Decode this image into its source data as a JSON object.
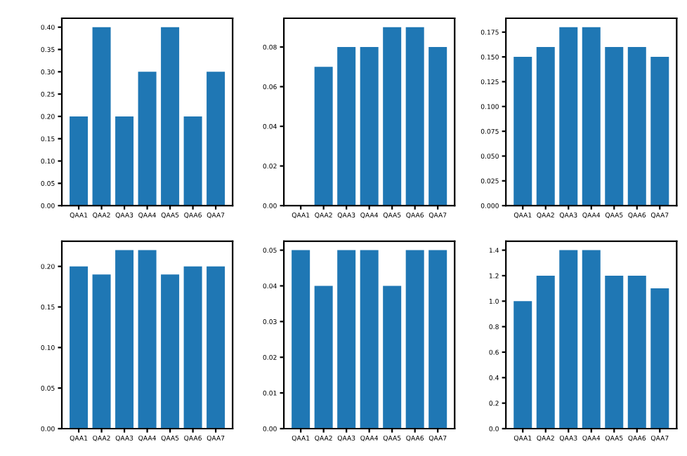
{
  "chart_data": [
    {
      "type": "bar",
      "categories": [
        "QAA1",
        "QAA2",
        "QAA3",
        "QAA4",
        "QAA5",
        "QAA6",
        "QAA7"
      ],
      "values": [
        0.2,
        0.4,
        0.2,
        0.3,
        0.4,
        0.2,
        0.3
      ],
      "color": "#1f77b4",
      "ylim": [
        0,
        0.42
      ],
      "yticks": [
        {
          "value": 0,
          "label": "0.00"
        },
        {
          "value": 0.05,
          "label": "0.05"
        },
        {
          "value": 0.1,
          "label": "0.10"
        },
        {
          "value": 0.15,
          "label": "0.15"
        },
        {
          "value": 0.2,
          "label": "0.20"
        },
        {
          "value": 0.25,
          "label": "0.25"
        },
        {
          "value": 0.3,
          "label": "0.30"
        },
        {
          "value": 0.35,
          "label": "0.35"
        },
        {
          "value": 0.4,
          "label": "0.40"
        }
      ],
      "grid": false,
      "legend": false
    },
    {
      "type": "bar",
      "categories": [
        "QAA1",
        "QAA2",
        "QAA3",
        "QAA4",
        "QAA5",
        "QAA6",
        "QAA7"
      ],
      "values": [
        0,
        0.07,
        0.08,
        0.08,
        0.09,
        0.09,
        0.08
      ],
      "color": "#1f77b4",
      "ylim": [
        0,
        0.0945
      ],
      "yticks": [
        {
          "value": 0,
          "label": "0.00"
        },
        {
          "value": 0.02,
          "label": "0.02"
        },
        {
          "value": 0.04,
          "label": "0.04"
        },
        {
          "value": 0.06,
          "label": "0.06"
        },
        {
          "value": 0.08,
          "label": "0.08"
        }
      ],
      "grid": false,
      "legend": false
    },
    {
      "type": "bar",
      "categories": [
        "QAA1",
        "QAA2",
        "QAA3",
        "QAA4",
        "QAA5",
        "QAA6",
        "QAA7"
      ],
      "values": [
        0.15,
        0.16,
        0.18,
        0.18,
        0.16,
        0.16,
        0.15
      ],
      "color": "#1f77b4",
      "ylim": [
        0,
        0.189
      ],
      "yticks": [
        {
          "value": 0,
          "label": "0.000"
        },
        0.025,
        {
          "value": 0.05,
          "label": "0.050"
        },
        0.075,
        {
          "value": 0.1,
          "label": "0.100"
        },
        0.125,
        {
          "value": 0.15,
          "label": "0.150"
        },
        0.175
      ],
      "grid": false,
      "legend": false
    },
    {
      "type": "bar",
      "categories": [
        "QAA1",
        "QAA2",
        "QAA3",
        "QAA4",
        "QAA5",
        "QAA6",
        "QAA7"
      ],
      "values": [
        0.2,
        0.19,
        0.22,
        0.22,
        0.19,
        0.2,
        0.2
      ],
      "color": "#1f77b4",
      "ylim": [
        0,
        0.231
      ],
      "yticks": [
        {
          "value": 0,
          "label": "0.00"
        },
        0.05,
        {
          "value": 0.1,
          "label": "0.10"
        },
        0.15,
        {
          "value": 0.2,
          "label": "0.20"
        }
      ],
      "grid": false,
      "legend": false
    },
    {
      "type": "bar",
      "categories": [
        "QAA1",
        "QAA2",
        "QAA3",
        "QAA4",
        "QAA5",
        "QAA6",
        "QAA7"
      ],
      "values": [
        0.05,
        0.04,
        0.05,
        0.05,
        0.04,
        0.05,
        0.05
      ],
      "color": "#1f77b4",
      "ylim": [
        0,
        0.0525
      ],
      "yticks": [
        {
          "value": 0,
          "label": "0.00"
        },
        0.01,
        0.02,
        0.03,
        0.04,
        0.05
      ],
      "grid": false,
      "legend": false
    },
    {
      "type": "bar",
      "categories": [
        "QAA1",
        "QAA2",
        "QAA3",
        "QAA4",
        "QAA5",
        "QAA6",
        "QAA7"
      ],
      "values": [
        1.0,
        1.2,
        1.4,
        1.4,
        1.2,
        1.2,
        1.1
      ],
      "color": "#1f77b4",
      "ylim": [
        0,
        1.47
      ],
      "yticks": [
        {
          "value": 0,
          "label": "0.0"
        },
        0.2,
        0.4,
        0.6,
        0.8,
        {
          "value": 1,
          "label": "1.0"
        },
        1.2,
        1.4
      ],
      "grid": false,
      "legend": false
    }
  ]
}
